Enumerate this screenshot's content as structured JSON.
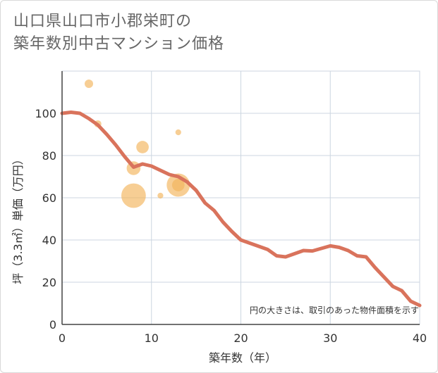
{
  "title_line1": "山口県山口市小郡栄町の",
  "title_line2": "築年数別中古マンション価格",
  "colors": {
    "line": "#d9735c",
    "bubble": "#f2b35a",
    "grid": "#ccd6e0",
    "axis": "#444444"
  },
  "chart_data": {
    "type": "scatter",
    "title": "山口県山口市小郡栄町の築年数別中古マンション価格",
    "xlabel": "築年数（年）",
    "ylabel": "坪（3.3㎡）単価（万円）",
    "xlim": [
      0,
      40
    ],
    "ylim": [
      0,
      120
    ],
    "xticks": [
      0,
      10,
      20,
      30,
      40
    ],
    "yticks": [
      0,
      20,
      40,
      60,
      80,
      100
    ],
    "annotation": "円の大きさは、取引のあった物件面積を示す",
    "trend_line": {
      "x": [
        0,
        1,
        2,
        3,
        4,
        5,
        6,
        7,
        8,
        9,
        10,
        11,
        12,
        13,
        14,
        15,
        16,
        17,
        18,
        19,
        20,
        21,
        22,
        23,
        24,
        25,
        26,
        27,
        28,
        29,
        30,
        31,
        32,
        33,
        34,
        35,
        36,
        37,
        38,
        39,
        40
      ],
      "y": [
        100,
        100.5,
        100,
        97.5,
        94.5,
        90,
        85,
        79.5,
        74.5,
        76,
        75,
        73,
        71,
        70,
        67.5,
        63.5,
        57.5,
        54,
        48.5,
        44,
        40,
        38.5,
        37,
        35.5,
        32.5,
        32,
        33.5,
        35,
        34.8,
        36,
        37.2,
        36.5,
        35,
        32.5,
        32,
        27,
        22.5,
        18,
        16,
        11,
        9
      ]
    },
    "bubbles": [
      {
        "x": 3,
        "y": 114,
        "size": 4
      },
      {
        "x": 4,
        "y": 95,
        "size": 3
      },
      {
        "x": 8,
        "y": 74,
        "size": 8
      },
      {
        "x": 8,
        "y": 61,
        "size": 16
      },
      {
        "x": 9,
        "y": 84,
        "size": 7
      },
      {
        "x": 11,
        "y": 61,
        "size": 2
      },
      {
        "x": 13,
        "y": 91,
        "size": 2
      },
      {
        "x": 13,
        "y": 66,
        "size": 15
      },
      {
        "x": 13,
        "y": 66,
        "size": 7
      }
    ]
  }
}
